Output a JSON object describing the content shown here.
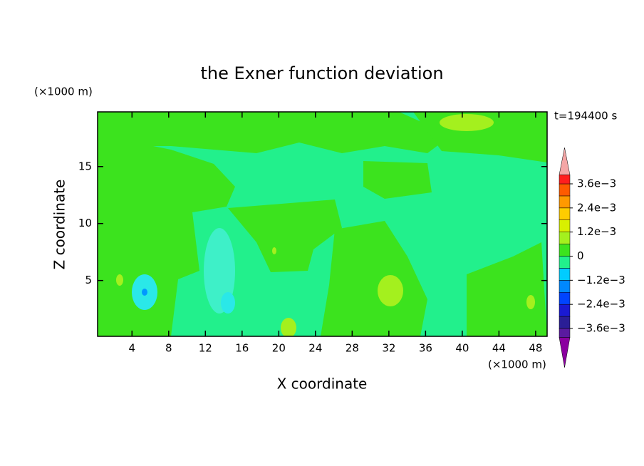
{
  "chart_data": {
    "type": "contour",
    "title": "the Exner function deviation",
    "x_label": "X coordinate",
    "y_label": "Z coordinate",
    "x_unit": "(×1000 m)",
    "y_unit": "(×1000 m)",
    "time_label": "t=194400 s",
    "xlim": [
      0.25,
      49.25
    ],
    "ylim": [
      0.1,
      19.8
    ],
    "xticks": [
      4,
      8,
      12,
      16,
      20,
      24,
      28,
      32,
      36,
      40,
      44,
      48
    ],
    "yticks": [
      5,
      10,
      15
    ],
    "levels": [
      -0.0036,
      -0.003,
      -0.0024,
      -0.0018,
      -0.0012,
      -0.0006,
      0,
      0.0006,
      0.0012,
      0.0018,
      0.0024,
      0.003,
      0.0036
    ],
    "level_colors": [
      "#5a1aa0",
      "#2a1e96",
      "#1a1ad2",
      "#0044ff",
      "#0088ff",
      "#00ccff",
      "#22f08c",
      "#3ce31e",
      "#a4f01e",
      "#d8f000",
      "#ffcc00",
      "#ff9900",
      "#ff5a00",
      "#ff1e1e"
    ],
    "extend_colors": [
      "#8b00a0",
      "#f4a6a6"
    ],
    "colorbar_ticks": [
      {
        "value": -0.0036,
        "label": "−3.6e−3"
      },
      {
        "value": -0.0024,
        "label": "−2.4e−3"
      },
      {
        "value": -0.0012,
        "label": "−1.2e−3"
      },
      0,
      {
        "value": 0.0012,
        "label": "1.2e−3"
      },
      {
        "value": 0.0024,
        "label": "2.4e−3"
      },
      {
        "value": 0.0036,
        "label": "3.6e−3"
      }
    ]
  }
}
